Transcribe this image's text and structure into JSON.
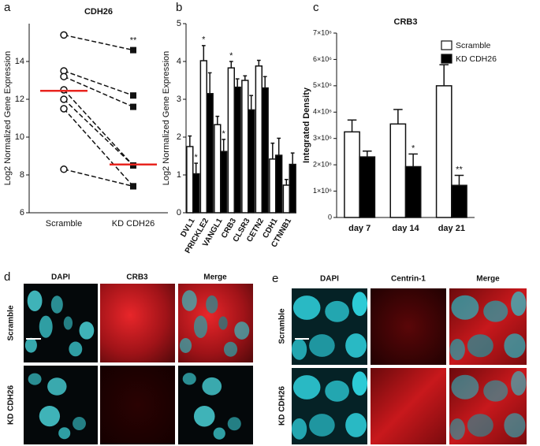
{
  "chart_data": [
    {
      "type": "line",
      "panel_letter": "a",
      "title": "CDH26",
      "y_label": "Log2 Normalized Gene Expression",
      "categories": [
        "Scramble",
        "KD CDH26"
      ],
      "markers": [
        "circle",
        "square"
      ],
      "series": [
        {
          "color": "#111111",
          "values": [
            15.4,
            14.6
          ]
        },
        {
          "color": "#111111",
          "values": [
            13.5,
            12.2
          ]
        },
        {
          "color": "#111111",
          "values": [
            13.2,
            11.6
          ]
        },
        {
          "color": "#111111",
          "values": [
            12.5,
            8.5
          ]
        },
        {
          "color": "#111111",
          "values": [
            12.0,
            8.5
          ]
        },
        {
          "color": "#111111",
          "values": [
            11.5,
            7.4
          ]
        },
        {
          "color": "#111111",
          "values": [
            8.3,
            7.4
          ]
        }
      ],
      "medians": [
        12.45,
        8.55
      ],
      "median_color": "#e8251f",
      "significance": [
        null,
        "**"
      ],
      "ylim": [
        6,
        16
      ],
      "yticks": [
        6,
        8,
        10,
        12,
        14
      ]
    },
    {
      "type": "bar",
      "panel_letter": "b",
      "y_label": "Log2 Normalized Gene Expression",
      "categories": [
        "DVL1",
        "PRICKLE2",
        "VANGL1",
        "CRB3",
        "CLSR3",
        "CETN2",
        "CDH1",
        "CTNNB1"
      ],
      "series": [
        {
          "color": "#ffffff",
          "values": [
            1.75,
            4.02,
            2.33,
            3.83,
            3.5,
            3.88,
            1.42,
            0.73
          ],
          "errors": [
            0.28,
            0.4,
            0.22,
            0.17,
            0.12,
            0.15,
            0.42,
            0.15
          ],
          "significance": [
            null,
            "*",
            null,
            "*",
            null,
            null,
            null,
            null
          ]
        },
        {
          "color": "#000000",
          "values": [
            1.03,
            3.15,
            1.62,
            3.32,
            2.72,
            3.3,
            1.52,
            1.28
          ],
          "errors": [
            0.28,
            0.55,
            0.32,
            0.22,
            0.38,
            0.3,
            0.45,
            0.3
          ],
          "significance": [
            "*",
            null,
            "*",
            null,
            null,
            null,
            null,
            null
          ]
        }
      ],
      "ylim": [
        0,
        5
      ],
      "yticks": [
        0,
        1,
        2,
        3,
        4,
        5
      ]
    },
    {
      "type": "bar",
      "panel_letter": "c",
      "title": "CRB3",
      "y_label": "Integrated Density",
      "categories": [
        "day 7",
        "day 14",
        "day 21"
      ],
      "series": [
        {
          "name": "Scramble",
          "color": "#ffffff",
          "values": [
            3250000,
            3550000,
            5000000
          ],
          "errors": [
            450000,
            550000,
            800000
          ],
          "significance": [
            null,
            null,
            null
          ]
        },
        {
          "name": "KD CDH26",
          "color": "#000000",
          "values": [
            2300000,
            1930000,
            1220000
          ],
          "errors": [
            220000,
            480000,
            380000
          ],
          "significance": [
            null,
            "*",
            "**"
          ]
        }
      ],
      "ylim": [
        0,
        7000000
      ],
      "yticks": [
        0,
        {
          "value": 1000000,
          "label": "1×10⁶"
        },
        {
          "value": 2000000,
          "label": "2×10⁶"
        },
        {
          "value": 3000000,
          "label": "3×10⁶"
        },
        {
          "value": 4000000,
          "label": "4×10⁶"
        },
        {
          "value": 5000000,
          "label": "5×10⁶"
        },
        {
          "value": 6000000,
          "label": "6×10⁶"
        },
        {
          "value": 7000000,
          "label": "7×10⁶"
        }
      ],
      "legend": "top-right"
    }
  ],
  "image_panels": [
    {
      "panel_letter": "d",
      "columns": [
        "DAPI",
        "CRB3",
        "Merge"
      ],
      "rows": [
        "Scramble",
        "KD CDH26"
      ]
    },
    {
      "panel_letter": "e",
      "columns": [
        "DAPI",
        "Centrin-1",
        "Merge"
      ],
      "rows": [
        "Scramble",
        "KD CDH26"
      ]
    }
  ]
}
